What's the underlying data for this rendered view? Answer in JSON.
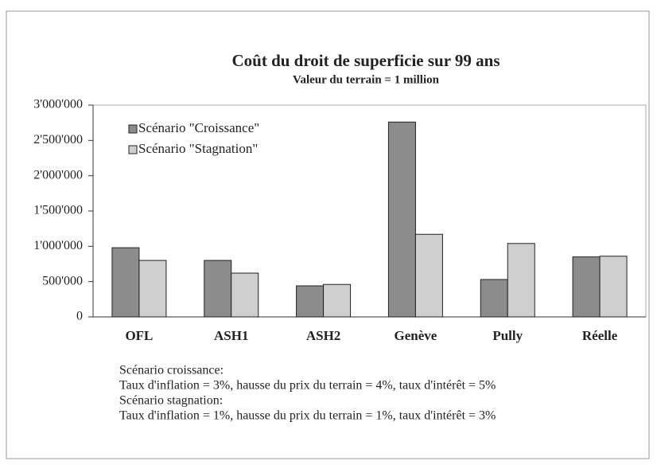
{
  "chart_data": {
    "type": "bar",
    "title": "Coût du droit de superficie sur 99 ans",
    "subtitle": "Valeur du terrain = 1 million",
    "categories": [
      "OFL",
      "ASH1",
      "ASH2",
      "Genève",
      "Pully",
      "Réelle"
    ],
    "series": [
      {
        "name": "Scénario \"Croissance\"",
        "color": "#8c8c8c",
        "values": [
          980000,
          800000,
          440000,
          2760000,
          530000,
          850000
        ]
      },
      {
        "name": "Scénario \"Stagnation\"",
        "color": "#cfcfcf",
        "values": [
          800000,
          620000,
          460000,
          1170000,
          1040000,
          860000
        ]
      }
    ],
    "ylim": [
      0,
      3000000
    ],
    "yticks": [
      0,
      {
        "value": 500000,
        "label": "500'000"
      },
      {
        "value": 1000000,
        "label": "1'000'000"
      },
      {
        "value": 1500000,
        "label": "1'500'000"
      },
      {
        "value": 2000000,
        "label": "2'000'000"
      },
      {
        "value": 2500000,
        "label": "2'500'000"
      },
      {
        "value": 3000000,
        "label": "3'000'000"
      }
    ],
    "grid": false,
    "legend": "top-left",
    "notes": [
      "Scénario croissance:",
      "Taux d'inflation = 3%, hausse du prix du terrain = 4%, taux d'intérêt = 5%",
      "Scénario stagnation:",
      "Taux d'inflation = 1%, hausse du prix du terrain = 1%, taux d'intérêt = 3%"
    ]
  }
}
